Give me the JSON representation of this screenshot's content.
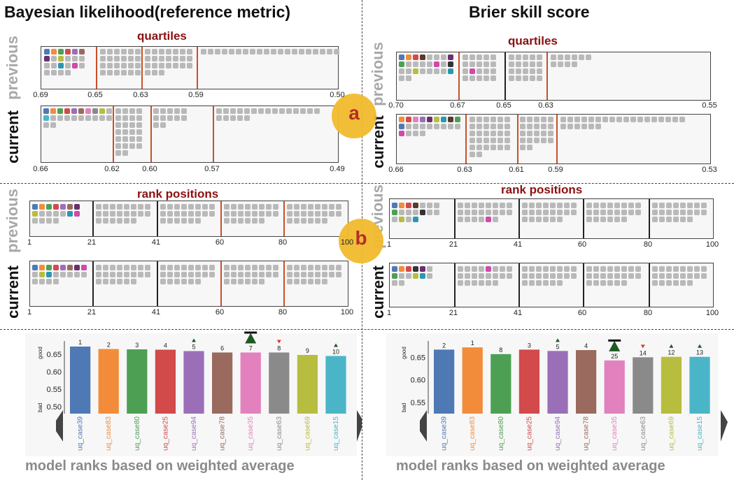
{
  "columns": [
    {
      "title": "Bayesian likelihood(reference metric)",
      "quartiles_title": "quartiles",
      "rank_title": "rank positions",
      "previous_label": "previous",
      "current_label": "current",
      "footer": "model ranks based on weighted average",
      "quartile_prev_ticks": [
        "0.69",
        "0.65",
        "0.63",
        "0.59",
        "0.50"
      ],
      "quartile_cur_ticks": [
        "0.66",
        "0.62",
        "0.60",
        "0.57",
        "0.49"
      ],
      "rank_prev_ticks": [
        "1",
        "21",
        "41",
        "60",
        "80",
        "100"
      ],
      "rank_cur_ticks": [
        "1",
        "21",
        "41",
        "60",
        "80",
        "100"
      ]
    },
    {
      "title": "Brier skill score",
      "quartiles_title": "quartiles",
      "rank_title": "rank positions",
      "previous_label": "previous",
      "current_label": "current",
      "footer": "model ranks based on weighted average",
      "quartile_prev_ticks": [
        "0.70",
        "0.67",
        "0.65",
        "0.63",
        "0.55"
      ],
      "quartile_cur_ticks": [
        "0.66",
        "0.63",
        "0.61",
        "0.59",
        "0.53"
      ],
      "rank_prev_ticks": [
        "1",
        "21",
        "41",
        "60",
        "80",
        "100"
      ],
      "rank_cur_ticks": [
        "1",
        "21",
        "41",
        "60",
        "80",
        "100"
      ]
    }
  ],
  "markers": {
    "a": "a",
    "b": "b"
  },
  "colors": {
    "dot_gray": "#b9b9b9",
    "section_title": "#8b1010",
    "marker_fill": "#f2bb2e",
    "arrow_up": "#1c5a23",
    "arrow_down": "#e0362c"
  },
  "chart_data": [
    {
      "type": "bar",
      "ylabel_top": "good",
      "ylabel_bottom": "bad",
      "yticks": [
        "0.50",
        "0.55",
        "0.60",
        "0.65"
      ],
      "ylim": [
        0.48,
        0.68
      ],
      "categories": [
        "uq_case39",
        "uq_case83",
        "uq_case80",
        "uq_case25",
        "uq_case94",
        "uq_case78",
        "uq_case35",
        "uq_case63",
        "uq_case69",
        "uq_case15"
      ],
      "values": [
        0.672,
        0.665,
        0.664,
        0.663,
        0.659,
        0.655,
        0.655,
        0.655,
        0.648,
        0.645
      ],
      "ranks": [
        "1",
        "2",
        "3",
        "4",
        "5",
        "6",
        "7",
        "8",
        "9",
        "10"
      ],
      "trend": [
        "none",
        "none",
        "none",
        "none",
        "up",
        "none",
        "up-big",
        "down",
        "none",
        "up"
      ],
      "colors": [
        "#4e79b5",
        "#f28c3a",
        "#4da053",
        "#d24a4a",
        "#9a6fb8",
        "#9a6a5e",
        "#e281be",
        "#8a8a8a",
        "#b7bd3f",
        "#4bb5c8"
      ]
    },
    {
      "type": "bar",
      "ylabel_top": "good",
      "ylabel_bottom": "bad",
      "yticks": [
        "0.55",
        "0.60",
        "0.65"
      ],
      "ylim": [
        0.525,
        0.68
      ],
      "categories": [
        "uq_case39",
        "uq_case83",
        "uq_case80",
        "uq_case25",
        "uq_case94",
        "uq_case78",
        "uq_case35",
        "uq_case63",
        "uq_case69",
        "uq_case15"
      ],
      "values": [
        0.667,
        0.672,
        0.657,
        0.667,
        0.664,
        0.666,
        0.643,
        0.65,
        0.651,
        0.651
      ],
      "ranks": [
        "2",
        "1",
        "8",
        "3",
        "5",
        "4",
        "25",
        "14",
        "12",
        "13"
      ],
      "trend": [
        "none",
        "none",
        "none",
        "none",
        "up",
        "none",
        "up-big",
        "down",
        "up",
        "up"
      ],
      "colors": [
        "#4e79b5",
        "#f28c3a",
        "#4da053",
        "#d24a4a",
        "#9a6fb8",
        "#9a6a5e",
        "#e281be",
        "#8a8a8a",
        "#b7bd3f",
        "#4bb5c8"
      ]
    }
  ]
}
